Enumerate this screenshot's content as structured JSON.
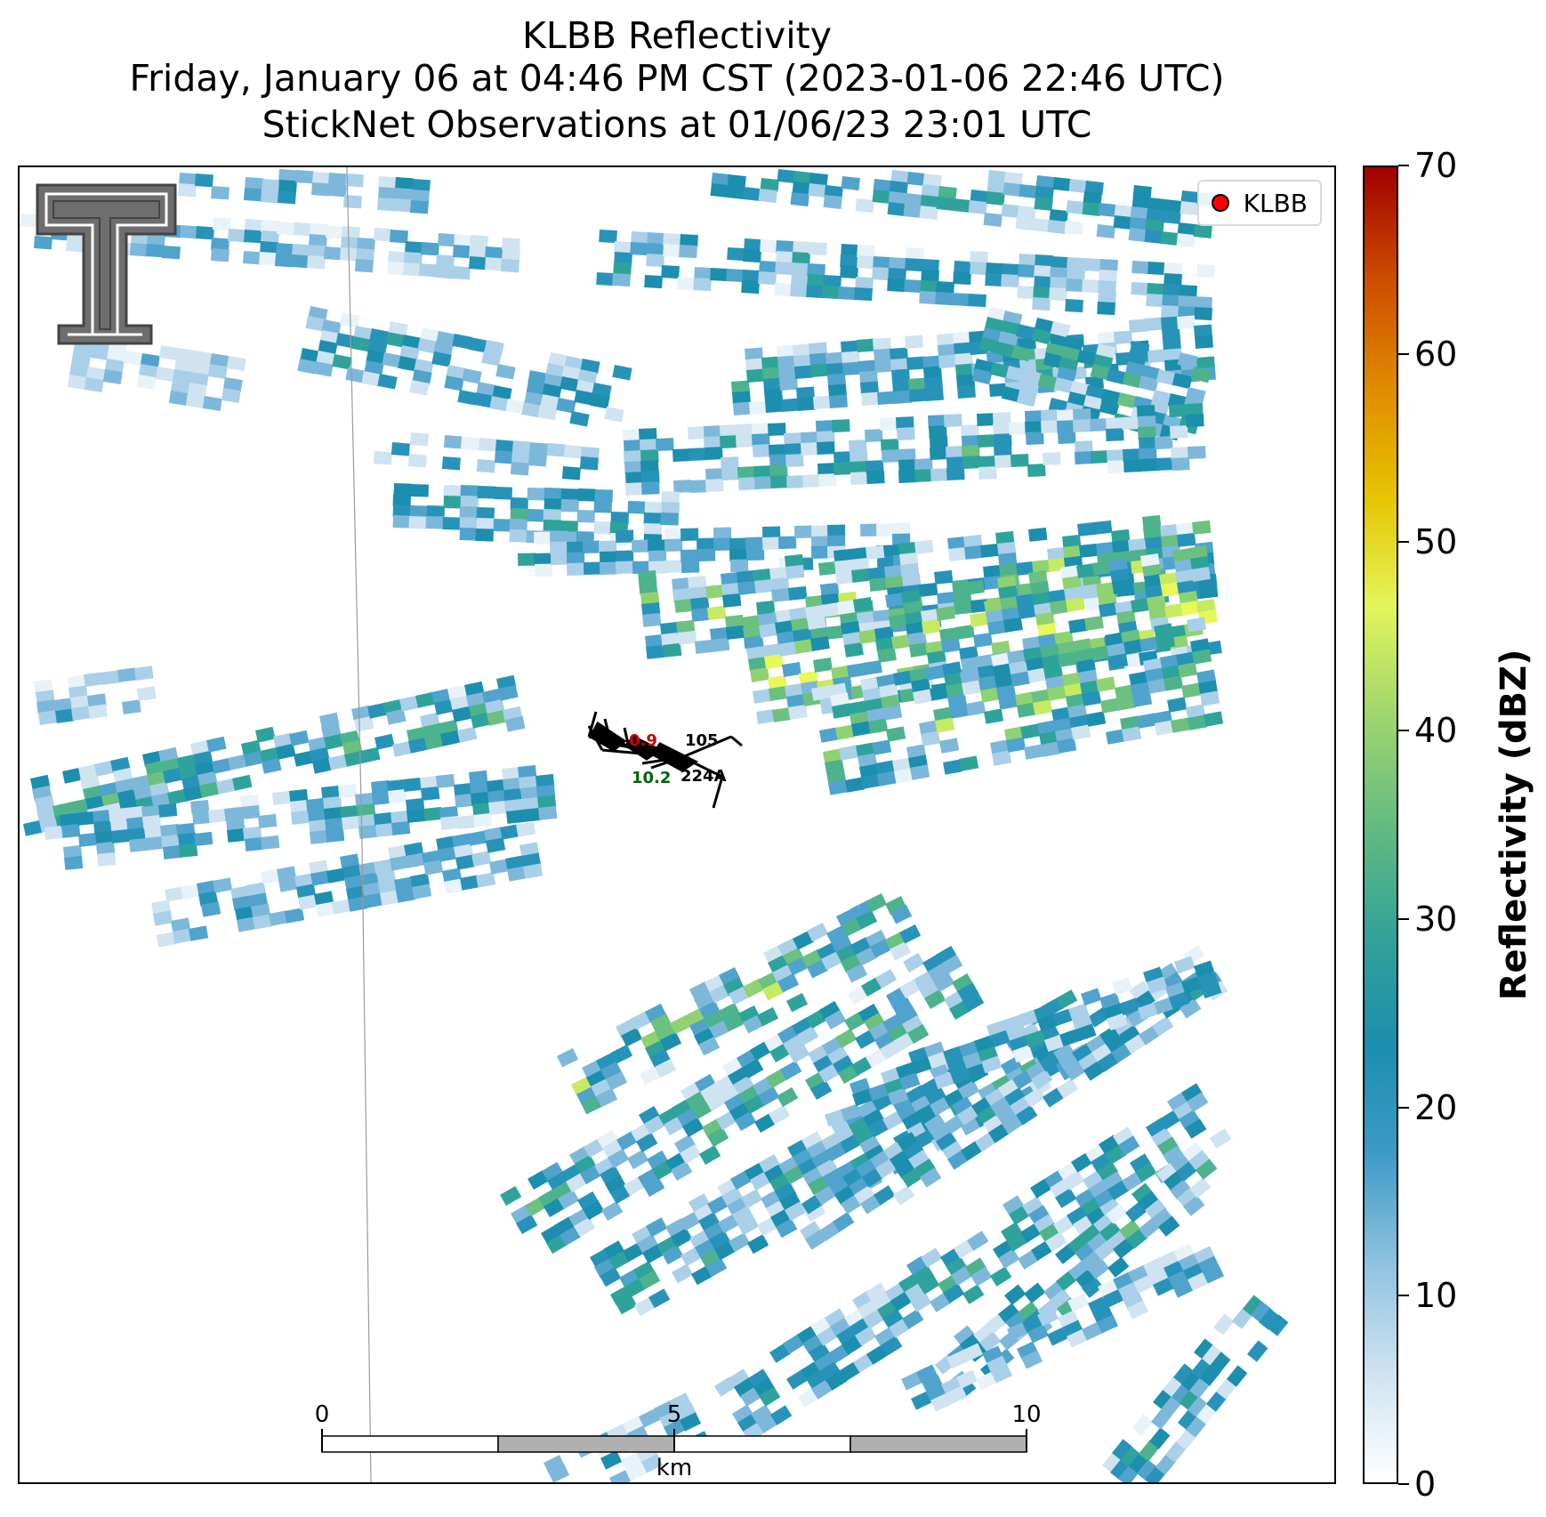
{
  "title": {
    "line1": "KLBB Reflectivity",
    "line2": "Friday, January 06 at 04:46 PM CST (2023-01-06 22:46 UTC)",
    "line3": "StickNet Observations at 01/06/23 23:01 UTC"
  },
  "legend": {
    "label": "KLBB",
    "marker_color": "#ff0000"
  },
  "colorbar": {
    "label": "Reflectivity (dBZ)",
    "range": [
      0,
      70
    ],
    "ticks": [
      "0",
      "10",
      "20",
      "30",
      "40",
      "50",
      "60",
      "70"
    ],
    "colors": [
      "#ffffff",
      "#cfe3f1",
      "#8fc2e0",
      "#3d9ac6",
      "#1c8eae",
      "#33a398",
      "#64bb80",
      "#9fd56f",
      "#e3f55a",
      "#e6c400",
      "#e08a00",
      "#cc4b00",
      "#a00000"
    ]
  },
  "scale_bar": {
    "ticks": [
      "0",
      "5",
      "10"
    ],
    "unit": "km"
  },
  "stations": [
    {
      "id": "105",
      "value": "0.9",
      "value_color": "#cc0000"
    },
    {
      "id": "224A",
      "value": "10.2",
      "value_color": "#006400"
    }
  ],
  "logo": {
    "name": "Texas Tech double T"
  }
}
